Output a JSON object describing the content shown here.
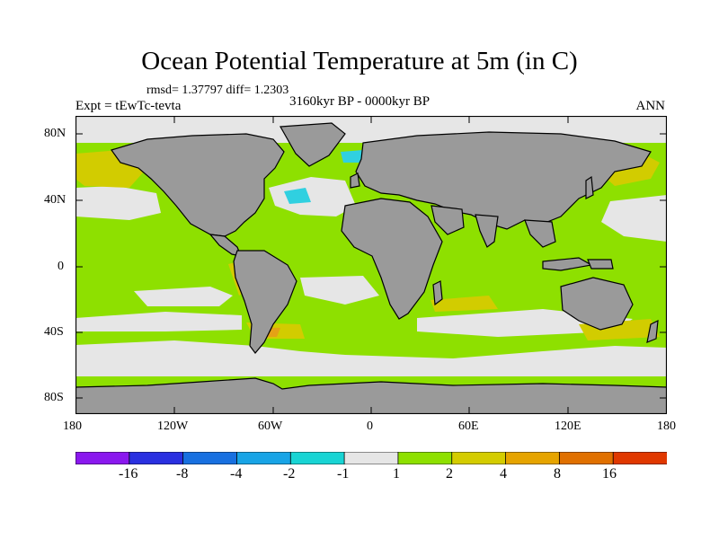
{
  "title": "Ocean Potential Temperature at 5m (in C)",
  "stats": "rmsd= 1.37797 diff= 1.2303",
  "experiment": "Expt = tEwTc-tevta",
  "period": "3160kyr BP - 0000kyr BP",
  "season": "ANN",
  "colors": {
    "land": "#9a9a9a",
    "band_minus1_1": "#e6e6e6",
    "band_1_2": "#8ee000",
    "band_2_4": "#d2cc00",
    "band_4_8": "#e4a216",
    "band_minus2_minus1": "#30d0e0"
  },
  "map": {
    "y_ticks": [
      "80N",
      "40N",
      "0",
      "40S",
      "80S"
    ],
    "x_ticks": [
      "180",
      "120W",
      "60W",
      "0",
      "60E",
      "120E",
      "180"
    ]
  },
  "colorbar": {
    "colors": [
      "#8a18ee",
      "#2a30e0",
      "#1870e0",
      "#18a4e6",
      "#18d4d4",
      "#e6e6e6",
      "#8ee000",
      "#d4cc00",
      "#e6a400",
      "#e07000",
      "#e03800"
    ],
    "labels": [
      "-16",
      "-8",
      "-4",
      "-2",
      "-1",
      "1",
      "2",
      "4",
      "8",
      "16"
    ]
  }
}
